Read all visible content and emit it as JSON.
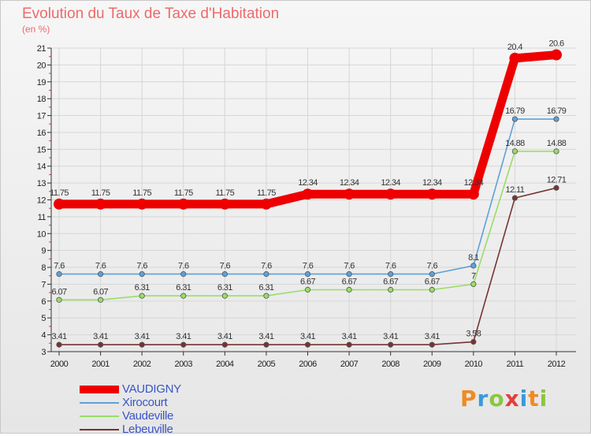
{
  "chart_data": {
    "type": "line",
    "title": "Evolution du Taux de Taxe d'Habitation",
    "unit_label": "(en %)",
    "categories": [
      "2000",
      "2001",
      "2002",
      "2003",
      "2004",
      "2005",
      "2006",
      "2007",
      "2008",
      "2009",
      "2010",
      "2011",
      "2012"
    ],
    "ylim": [
      3,
      21
    ],
    "yticks": [
      3,
      4,
      5,
      6,
      7,
      8,
      9,
      10,
      11,
      12,
      13,
      14,
      15,
      16,
      17,
      18,
      19,
      20,
      21
    ],
    "grid": true,
    "legend_position": "bottom-left",
    "series": [
      {
        "name": "VAUDIGNY",
        "color": "#ee0000",
        "values": [
          11.75,
          11.75,
          11.75,
          11.75,
          11.75,
          11.75,
          12.34,
          12.34,
          12.34,
          12.34,
          12.34,
          20.4,
          20.6
        ],
        "labels": [
          "11.75",
          "11.75",
          "11.75",
          "11.75",
          "11.75",
          "11.75",
          "12.34",
          "12.34",
          "12.34",
          "12.34",
          "12.34",
          "20.4",
          "20.6"
        ]
      },
      {
        "name": "Xirocourt",
        "color": "#5fa0d8",
        "values": [
          7.6,
          7.6,
          7.6,
          7.6,
          7.6,
          7.6,
          7.6,
          7.6,
          7.6,
          7.6,
          8.1,
          16.79,
          16.79
        ],
        "labels": [
          "7.6",
          "7.6",
          "7.6",
          "7.6",
          "7.6",
          "7.6",
          "7.6",
          "7.6",
          "7.6",
          "7.6",
          "8.1",
          "16.79",
          "16.79"
        ]
      },
      {
        "name": "Vaudeville",
        "color": "#99dd66",
        "values": [
          6.07,
          6.07,
          6.31,
          6.31,
          6.31,
          6.31,
          6.67,
          6.67,
          6.67,
          6.67,
          7,
          14.88,
          14.88
        ],
        "labels": [
          "6.07",
          "6.07",
          "6.31",
          "6.31",
          "6.31",
          "6.31",
          "6.67",
          "6.67",
          "6.67",
          "6.67",
          "7",
          "14.88",
          "14.88"
        ]
      },
      {
        "name": "Lebeuville",
        "color": "#773333",
        "values": [
          3.41,
          3.41,
          3.41,
          3.41,
          3.41,
          3.41,
          3.41,
          3.41,
          3.41,
          3.41,
          3.58,
          12.11,
          12.71
        ],
        "labels": [
          "3.41",
          "3.41",
          "3.41",
          "3.41",
          "3.41",
          "3.41",
          "3.41",
          "3.41",
          "3.41",
          "3.41",
          "3.58",
          "12.11",
          "12.71"
        ]
      }
    ]
  },
  "logo": {
    "letters": [
      "P",
      "r",
      "o",
      "x",
      "i",
      "t",
      "i"
    ],
    "colors": [
      "#f08a24",
      "#3a9ad9",
      "#8cc63f",
      "#e63d3d",
      "#3a9ad9",
      "#f08a24",
      "#8cc63f"
    ]
  }
}
